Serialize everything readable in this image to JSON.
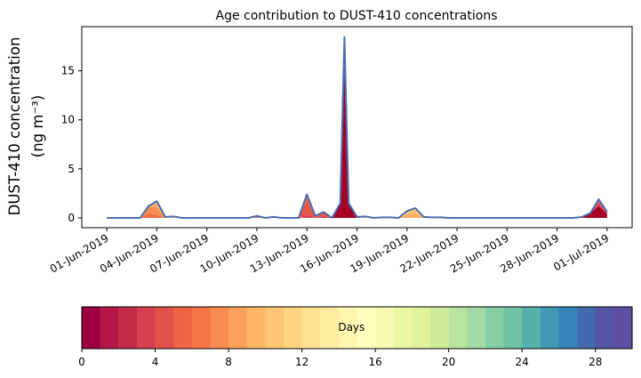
{
  "chart_data": {
    "type": "area",
    "title": "Age contribution to DUST-410 concentrations",
    "ylabel_line1": "DUST-410 concentration",
    "ylabel_line2": "(ng m⁻³)",
    "xlabel": "",
    "stacked": true,
    "y_ticks": [
      0,
      5,
      10,
      15
    ],
    "ylim": [
      -1.0,
      19.5
    ],
    "x_tick_labels": [
      "01-Jun-2019",
      "04-Jun-2019",
      "07-Jun-2019",
      "10-Jun-2019",
      "13-Jun-2019",
      "16-Jun-2019",
      "19-Jun-2019",
      "22-Jun-2019",
      "25-Jun-2019",
      "28-Jun-2019",
      "01-Jul-2019"
    ],
    "x_tick_days": [
      0,
      3,
      6,
      9,
      12,
      15,
      18,
      21,
      24,
      27,
      30
    ],
    "xlim_days": [
      -1.5,
      31.5
    ],
    "x": [
      0,
      0.5,
      1,
      1.5,
      2,
      2.5,
      3,
      3.5,
      4,
      4.5,
      5,
      5.5,
      6,
      6.5,
      7,
      7.5,
      8,
      8.5,
      9,
      9.5,
      10,
      10.5,
      11,
      11.5,
      12,
      12.5,
      13,
      13.5,
      14,
      14.25,
      14.5,
      15,
      15.5,
      16,
      16.5,
      17,
      17.5,
      18,
      18.5,
      19,
      19.5,
      20,
      20.5,
      21,
      21.5,
      22,
      22.5,
      23,
      23.5,
      24,
      24.5,
      25,
      25.5,
      26,
      26.5,
      27,
      27.5,
      28,
      28.5,
      29,
      29.5,
      30
    ],
    "series": [
      {
        "values": [
          0,
          0,
          0,
          0,
          0,
          0,
          0,
          0,
          0,
          0,
          0,
          0,
          0,
          0,
          0,
          0,
          0,
          0,
          0,
          0,
          0,
          0,
          0,
          0,
          0,
          0,
          0,
          0,
          1.5,
          15.3,
          1.5,
          0,
          0,
          0,
          0,
          0,
          0,
          0,
          0,
          0,
          0,
          0,
          0,
          0,
          0,
          0,
          0,
          0,
          0,
          0,
          0,
          0,
          0,
          0,
          0,
          0,
          0,
          0,
          0.1,
          0.5,
          1.2,
          0.4
        ]
      },
      {
        "values": [
          0,
          0,
          0,
          0,
          0,
          0,
          0,
          0,
          0,
          0,
          0,
          0,
          0,
          0,
          0,
          0,
          0,
          0,
          0,
          0,
          0,
          0,
          0,
          0,
          0.3,
          0,
          0.2,
          0,
          0,
          2.0,
          0,
          0,
          0,
          0,
          0,
          0,
          0,
          0,
          0,
          0,
          0,
          0,
          0,
          0,
          0,
          0,
          0,
          0,
          0,
          0,
          0,
          0,
          0,
          0,
          0,
          0,
          0,
          0,
          0,
          0,
          0.3,
          0.1
        ]
      },
      {
        "values": [
          0,
          0,
          0,
          0,
          0,
          0,
          0,
          0,
          0,
          0,
          0,
          0,
          0,
          0,
          0,
          0,
          0,
          0,
          0,
          0,
          0,
          0,
          0,
          0,
          1.6,
          0.1,
          0.3,
          0,
          0,
          0.5,
          0,
          0,
          0,
          0,
          0,
          0,
          0,
          0,
          0,
          0,
          0,
          0,
          0,
          0,
          0,
          0,
          0,
          0,
          0,
          0,
          0,
          0,
          0,
          0,
          0,
          0,
          0,
          0,
          0,
          0,
          0.2,
          0.1
        ]
      },
      {
        "values": [
          0,
          0,
          0,
          0,
          0,
          0.5,
          0.3,
          0,
          0,
          0,
          0,
          0,
          0,
          0,
          0,
          0,
          0,
          0,
          0.1,
          0,
          0,
          0,
          0,
          0,
          0.3,
          0.1,
          0.1,
          0,
          0,
          0.3,
          0,
          0,
          0,
          0,
          0,
          0,
          0,
          0,
          0,
          0,
          0,
          0,
          0,
          0,
          0,
          0,
          0,
          0,
          0,
          0,
          0,
          0,
          0,
          0,
          0,
          0,
          0,
          0,
          0,
          0,
          0.1,
          0
        ]
      },
      {
        "values": [
          0,
          0,
          0,
          0,
          0,
          0.6,
          0.8,
          0,
          0,
          0,
          0,
          0,
          0,
          0,
          0,
          0,
          0,
          0,
          0.05,
          0,
          0,
          0,
          0,
          0,
          0.2,
          0,
          0,
          0,
          0,
          0.2,
          0,
          0,
          0,
          0,
          0,
          0,
          0,
          0,
          0,
          0,
          0,
          0,
          0,
          0,
          0,
          0,
          0,
          0,
          0,
          0,
          0,
          0,
          0,
          0,
          0,
          0,
          0,
          0,
          0,
          0,
          0.1,
          0
        ]
      },
      {
        "values": [
          0,
          0,
          0,
          0,
          0,
          0.1,
          0.4,
          0.05,
          0.1,
          0,
          0,
          0,
          0,
          0,
          0,
          0,
          0,
          0,
          0,
          0,
          0.05,
          0,
          0,
          0,
          0,
          0,
          0,
          0,
          0,
          0.1,
          0,
          0,
          0.05,
          0,
          0,
          0,
          0,
          0.4,
          0.5,
          0.05,
          0,
          0,
          0,
          0,
          0,
          0,
          0,
          0,
          0,
          0,
          0,
          0,
          0,
          0,
          0,
          0,
          0,
          0,
          0,
          0,
          0,
          0
        ]
      },
      {
        "values": [
          0,
          0,
          0,
          0,
          0,
          0,
          0.2,
          0.05,
          0.05,
          0,
          0,
          0,
          0,
          0,
          0,
          0,
          0,
          0,
          0,
          0,
          0.05,
          0,
          0,
          0,
          0,
          0,
          0,
          0,
          0,
          0.05,
          0,
          0.1,
          0.1,
          0,
          0.05,
          0.05,
          0,
          0.3,
          0.5,
          0.05,
          0,
          0,
          0,
          0,
          0,
          0,
          0,
          0,
          0,
          0,
          0,
          0,
          0,
          0,
          0,
          0,
          0,
          0,
          0,
          0,
          0,
          0
        ]
      },
      {
        "values": [
          0,
          0,
          0,
          0,
          0,
          0,
          0,
          0,
          0,
          0,
          0,
          0,
          0,
          0,
          0,
          0,
          0,
          0,
          0.05,
          0,
          0,
          0,
          0,
          0,
          0,
          0,
          0,
          0,
          0,
          0,
          0,
          0,
          0,
          0,
          0,
          0,
          0,
          0,
          0,
          0,
          0.05,
          0.05,
          0,
          0,
          0,
          0,
          0,
          0,
          0,
          0,
          0,
          0,
          0,
          0,
          0,
          0,
          0,
          0,
          0,
          0,
          0,
          0
        ]
      }
    ],
    "series_colors": [
      "#a50026",
      "#d53e4f",
      "#e4584a",
      "#f46d43",
      "#f88d51",
      "#fdae61",
      "#fec574",
      "#fee08b"
    ],
    "outline_color": "#4b6db0",
    "colorbar": {
      "label": "Days",
      "ticks": [
        0,
        4,
        8,
        12,
        16,
        20,
        24,
        28
      ],
      "range": [
        0,
        30
      ],
      "colormap": "Spectral",
      "colors": [
        "#9e0142",
        "#b41747",
        "#c42c4a",
        "#d6404e",
        "#e1524a",
        "#ee6445",
        "#f57548",
        "#f88d51",
        "#fba15b",
        "#fdb567",
        "#fec574",
        "#fed481",
        "#fee28f",
        "#feed9e",
        "#fff6b0",
        "#fffebe",
        "#f7fbb2",
        "#ecf7a2",
        "#e0f39a",
        "#cfec9d",
        "#b9e3a0",
        "#a2d9a4",
        "#88cfa4",
        "#6ec4a5",
        "#57b1ab",
        "#4199b6",
        "#3684bb",
        "#436ab0",
        "#5356a4",
        "#5e4fa2"
      ]
    }
  }
}
